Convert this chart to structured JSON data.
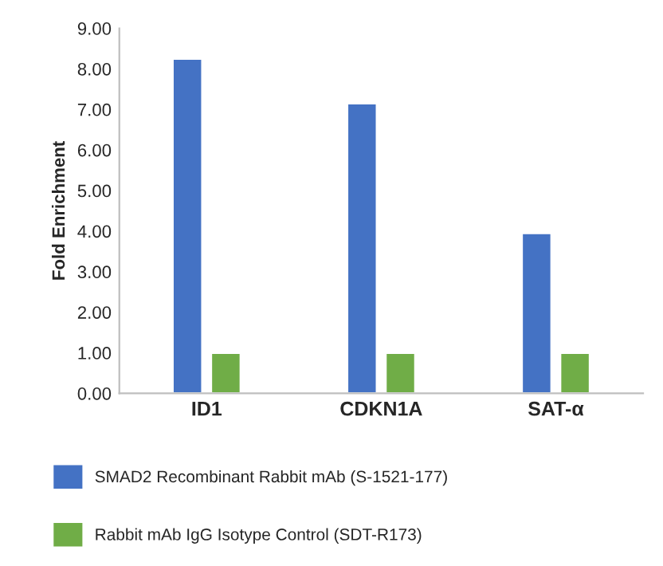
{
  "chart_data": {
    "type": "bar",
    "ylabel": "Fold Enrichment",
    "categories": [
      "ID1",
      "CDKN1A",
      "SAT-α"
    ],
    "series": [
      {
        "name": "SMAD2 Recombinant Rabbit mAb (S-1521-177)",
        "color": "#4472c4",
        "values": [
          8.25,
          7.15,
          3.95
        ]
      },
      {
        "name": "Rabbit mAb IgG Isotype Control (SDT-R173)",
        "color": "#70ad47",
        "values": [
          1.0,
          1.0,
          1.0
        ]
      }
    ],
    "ylim": [
      0,
      9
    ],
    "yticks": [
      {
        "value": 0,
        "label": "0.00"
      },
      {
        "value": 1,
        "label": "1.00"
      },
      {
        "value": 2,
        "label": "2.00"
      },
      {
        "value": 3,
        "label": "3.00"
      },
      {
        "value": 4,
        "label": "4.00"
      },
      {
        "value": 5,
        "label": "5.00"
      },
      {
        "value": 6,
        "label": "6.00"
      },
      {
        "value": 7,
        "label": "7.00"
      },
      {
        "value": 8,
        "label": "8.00"
      },
      {
        "value": 9,
        "label": "9.00"
      }
    ],
    "grid": false,
    "legend": "bottom"
  }
}
